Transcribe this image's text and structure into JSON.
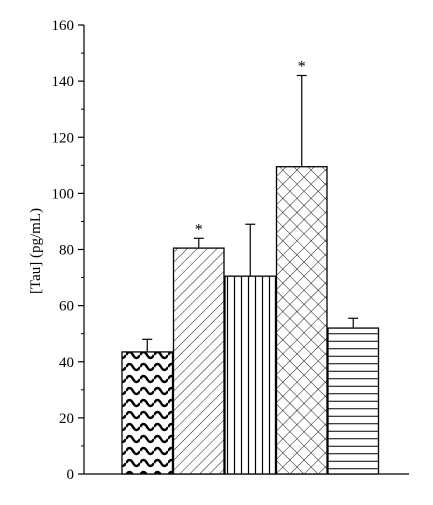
{
  "chart_data": {
    "type": "bar",
    "title": "",
    "xlabel": "",
    "ylabel": "[Tau] (pg/mL)",
    "ylim": [
      0,
      160
    ],
    "yticks": [
      0,
      20,
      40,
      60,
      80,
      100,
      120,
      140,
      160
    ],
    "grid": false,
    "legend": "none",
    "bars": [
      {
        "value": 43.5,
        "error": 4.5,
        "significant": false,
        "pattern": "wavy-horizontal"
      },
      {
        "value": 80.5,
        "error": 3.5,
        "significant": true,
        "pattern": "diagonal-hatch"
      },
      {
        "value": 70.5,
        "error": 18.5,
        "significant": false,
        "pattern": "vertical-lines"
      },
      {
        "value": 109.5,
        "error": 32.5,
        "significant": true,
        "pattern": "crosshatch"
      },
      {
        "value": 52,
        "error": 3.5,
        "significant": false,
        "pattern": "horizontal-lines"
      }
    ],
    "significance_marker": "*",
    "colors": {
      "fill": "#ffffff",
      "stroke": "#000000"
    }
  }
}
